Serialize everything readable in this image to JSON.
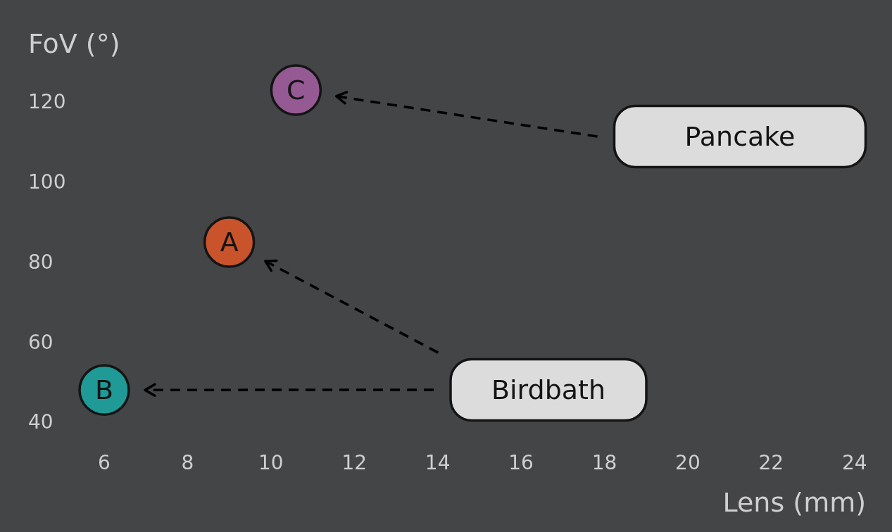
{
  "chart_data": {
    "type": "scatter",
    "xlabel": "Lens (mm)",
    "ylabel": "FoV (°)",
    "xlim": [
      3.5,
      24.9
    ],
    "xticks": [
      6,
      8,
      10,
      12,
      14,
      16,
      18,
      20,
      22,
      24
    ],
    "ylim": [
      12.5,
      145.5
    ],
    "yticks": [
      40,
      60,
      80,
      100,
      120
    ],
    "series": [
      {
        "name": "Birdbath",
        "x": [
          9,
          6
        ],
        "values": [
          85,
          48
        ],
        "colors": [
          "#c9532b",
          "#1f9a96"
        ],
        "value_labels": [
          "A",
          "B"
        ]
      },
      {
        "name": "Pancake",
        "x": [
          10.6
        ],
        "values": [
          123
        ],
        "colors": [
          "#955a93"
        ],
        "value_labels": [
          "C"
        ]
      }
    ]
  }
}
